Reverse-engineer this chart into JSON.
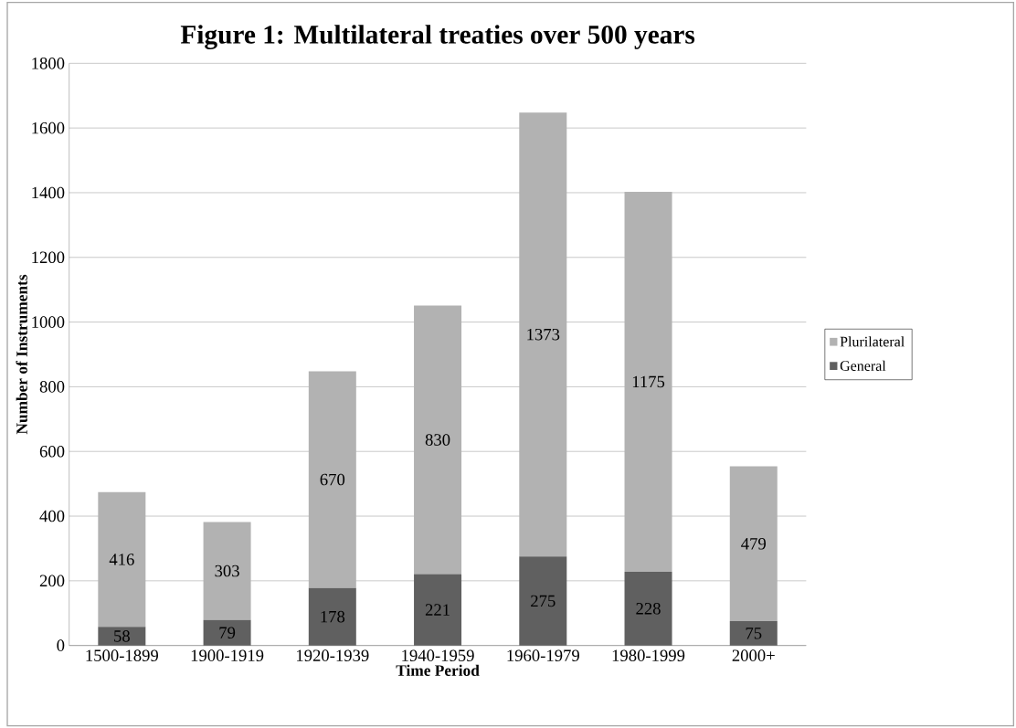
{
  "chart_data": {
    "type": "bar",
    "title": "Figure 1: Multilateral treaties over 500 years",
    "xlabel": "Time Period",
    "ylabel": "Number of Instruments",
    "categories": [
      "1500-1899",
      "1900-1919",
      "1920-1939",
      "1940-1959",
      "1960-1979",
      "1980-1999",
      "2000+"
    ],
    "series": [
      {
        "name": "General",
        "color": "#606060",
        "values": [
          58,
          79,
          178,
          221,
          275,
          228,
          75
        ]
      },
      {
        "name": "Plurilateral",
        "color": "#b2b2b2",
        "values": [
          416,
          303,
          670,
          830,
          1373,
          1175,
          479
        ]
      }
    ],
    "stacked": true,
    "data_labels": true,
    "grid": "y",
    "legend": "right",
    "ylim": [
      0,
      1800
    ],
    "yticks": [
      0,
      200,
      400,
      600,
      800,
      1000,
      1200,
      1400,
      1600,
      1800
    ]
  }
}
